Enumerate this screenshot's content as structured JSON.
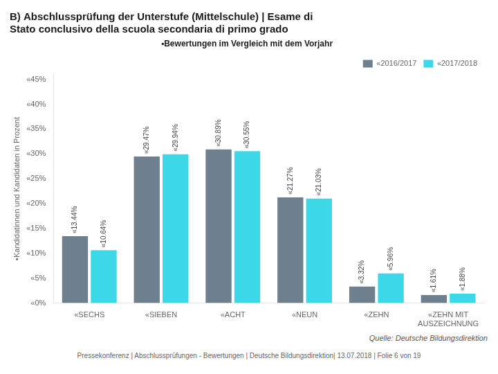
{
  "chart_data": {
    "type": "bar",
    "title": [
      "B) Abschlussprüfung der Unterstufe (Mittelschule) | Esame di",
      "Stato conclusivo della scuola secondaria di primo grado"
    ],
    "subtitle": "▪Bewertungen im Vergleich mit dem Vorjahr",
    "y_label": "▪Kandidatinnen und Kandidaten in Prozent",
    "annotations": [
      "Quelle: Deutsche Bildungsdirektion",
      "Pressekonferenz | Abschlussprüfungen - Bewertungen | Deutsche Bildungsdirektion| 13.07.2018 | Folie  6 von 19"
    ],
    "categories": [
      "«SECHS",
      "«SIEBEN",
      "«ACHT",
      "«NEUN",
      "«ZEHN",
      "«ZEHN MIT\nAUSZEICHNUNG"
    ],
    "series": [
      {
        "name": "«2016/2017",
        "color": "#6e7f8d",
        "values": [
          13.44,
          29.47,
          30.89,
          21.27,
          3.32,
          1.61
        ],
        "value_labels": [
          "«13.44%",
          "«29.47%",
          "«30.89%",
          "«21.27%",
          "«3.32%",
          "«1.61%"
        ]
      },
      {
        "name": "«2017/2018",
        "color": "#3dd8e8",
        "values": [
          10.64,
          29.94,
          30.55,
          21.03,
          5.96,
          1.88
        ],
        "value_labels": [
          "«10.64%",
          "«29.94%",
          "«30.55%",
          "«21.03%",
          "«5.96%",
          "«1.88%"
        ]
      }
    ],
    "ylim": [
      0,
      46
    ],
    "yticks": [
      {
        "value": 0,
        "label": "«0%"
      },
      {
        "value": 5,
        "label": "«5%"
      },
      {
        "value": 10,
        "label": "«10%"
      },
      {
        "value": 15,
        "label": "«15%"
      },
      {
        "value": 20,
        "label": "«20%"
      },
      {
        "value": 25,
        "label": "«25%"
      },
      {
        "value": 30,
        "label": "«30%"
      },
      {
        "value": 35,
        "label": "«35%"
      },
      {
        "value": 40,
        "label": "«40%"
      },
      {
        "value": 45,
        "label": "«45%"
      }
    ],
    "data_labels": true,
    "grid": false,
    "legend": "top"
  }
}
